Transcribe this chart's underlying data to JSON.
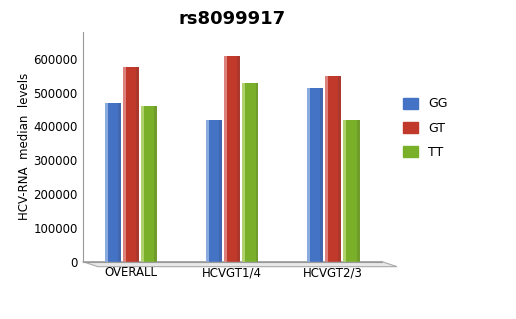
{
  "title": "rs8099917",
  "ylabel": "HCV-RNA  median  levels",
  "categories": [
    "OVERALL",
    "HCVGT1/4",
    "HCVGT2/3"
  ],
  "series": {
    "GG": [
      470000,
      420000,
      515000
    ],
    "GT": [
      575000,
      610000,
      550000
    ],
    "TT": [
      460000,
      530000,
      420000
    ]
  },
  "colors": {
    "GG": "#4472C4",
    "GT": "#C0392B",
    "TT": "#7AAF2A"
  },
  "colors_light": {
    "GG": "#A8C4E8",
    "GT": "#E8A0A0",
    "TT": "#C8E08A"
  },
  "ylim": [
    0,
    680000
  ],
  "yticks": [
    0,
    100000,
    200000,
    300000,
    400000,
    500000,
    600000
  ],
  "bar_width": 0.18,
  "title_fontsize": 13,
  "axis_fontsize": 8.5,
  "legend_fontsize": 9,
  "background_color": "#ffffff",
  "platform_color": "#E8E8E8",
  "platform_edge": "#AAAAAA"
}
